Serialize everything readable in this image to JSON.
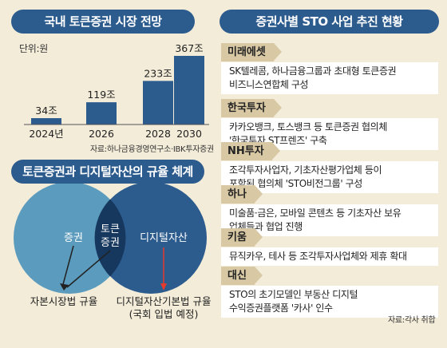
{
  "left_title": "국내 토큰증권 시장 전망",
  "unit": "단위:원",
  "chart_data": {
    "type": "bar",
    "categories": [
      "2024년",
      "2026",
      "2028",
      "2030"
    ],
    "values": [
      34,
      119,
      233,
      367
    ],
    "value_labels": [
      "34조",
      "119조",
      "233조",
      "367조"
    ],
    "ylim": [
      0,
      367
    ],
    "bar_color": "#2c5b8e",
    "grid": false
  },
  "chart_source": "자료:하나금융경영연구소·IBK투자증권",
  "venn_title": "토큰증권과 디지털자산의 규율 체계",
  "venn": {
    "left_label": "증권",
    "overlap_label_1": "토큰",
    "overlap_label_2": "증권",
    "right_label": "디지털자산",
    "left_note": "자본시장법 규율",
    "right_note_1": "디지털자산기본법 규율",
    "right_note_2": "(국회 입법 예정)",
    "colors": {
      "left": "#5b9bbd",
      "right": "#2c5b8e",
      "overlap": "#16375e"
    }
  },
  "right_title": "증권사별 STO 사업 추진 현황",
  "companies": [
    {
      "name": "미래에셋",
      "lines": [
        "SK텔레콤, 하나금융그룹과 초대형 토큰증권",
        "비즈니스연합체 구성"
      ]
    },
    {
      "name": "한국투자",
      "lines": [
        "카카오뱅크, 토스뱅크 등 토큰증권 협의체",
        "'한국투자 ST프렌즈' 구축"
      ]
    },
    {
      "name": "NH투자",
      "lines": [
        "조각투자사업자, 기초자산평가업체 등이",
        "포함된 협의체 'STO비전그룹' 구성"
      ]
    },
    {
      "name": "하나",
      "lines": [
        "미술품·금은, 모바일 콘텐츠 등 기초자산 보유",
        "업체들과 협업 진행"
      ]
    },
    {
      "name": "키움",
      "lines": [
        "뮤직카우, 테사 등 조각투자사업체와 제휴 확대"
      ]
    },
    {
      "name": "대신",
      "lines": [
        "STO의 초기모델인 부동산 디지털",
        "수익증권플랫폼 '카사' 인수"
      ]
    }
  ],
  "right_source": "자료:각사 취합"
}
